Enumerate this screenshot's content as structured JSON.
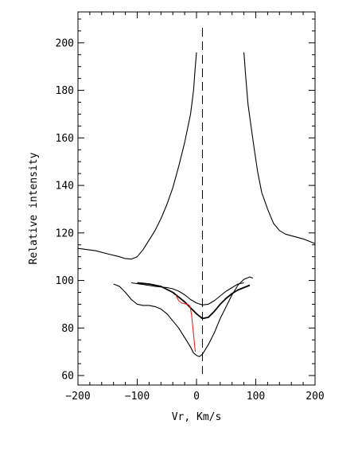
{
  "chart_data": {
    "type": "line",
    "title": "",
    "xlabel": "Vr, Km/s",
    "ylabel": "Relative intensity",
    "xlim": [
      -200,
      200
    ],
    "ylim": [
      56,
      213
    ],
    "xticks": [
      -200,
      -100,
      0,
      100,
      200
    ],
    "yticks": [
      60,
      80,
      100,
      120,
      140,
      160,
      180,
      200
    ],
    "grid": false,
    "legend": "none",
    "reference_line": {
      "x": 10,
      "style": "dashed"
    },
    "series": [
      {
        "color": "#000000",
        "width": 1.1,
        "points": [
          [
            -200,
            113.5
          ],
          [
            -170,
            112.5
          ],
          [
            -150,
            111.2
          ],
          [
            -130,
            110
          ],
          [
            -120,
            109.2
          ],
          [
            -110,
            109
          ],
          [
            -100,
            110
          ],
          [
            -90,
            113
          ],
          [
            -80,
            117
          ],
          [
            -70,
            121
          ],
          [
            -60,
            126
          ],
          [
            -50,
            132
          ],
          [
            -40,
            139
          ],
          [
            -30,
            148
          ],
          [
            -20,
            158
          ],
          [
            -10,
            170
          ],
          [
            -5,
            180
          ],
          [
            -2,
            190
          ],
          [
            0,
            196
          ]
        ]
      },
      {
        "color": "#000000",
        "width": 1.1,
        "points": [
          [
            80,
            196
          ],
          [
            83,
            186
          ],
          [
            87,
            174
          ],
          [
            92,
            165
          ],
          [
            97,
            156
          ],
          [
            103,
            146
          ],
          [
            110,
            137
          ],
          [
            120,
            130
          ],
          [
            130,
            124
          ],
          [
            140,
            121
          ],
          [
            150,
            119.5
          ],
          [
            165,
            118.5
          ],
          [
            180,
            117.5
          ],
          [
            190,
            116.5
          ],
          [
            200,
            115.5
          ]
        ]
      },
      {
        "color": "#000000",
        "width": 1.1,
        "points": [
          [
            -140,
            98.5
          ],
          [
            -130,
            97.5
          ],
          [
            -120,
            95
          ],
          [
            -110,
            92
          ],
          [
            -100,
            90
          ],
          [
            -90,
            89.5
          ],
          [
            -80,
            89.5
          ],
          [
            -70,
            89
          ],
          [
            -60,
            88
          ],
          [
            -50,
            86
          ],
          [
            -40,
            83
          ],
          [
            -30,
            80
          ],
          [
            -20,
            76
          ],
          [
            -10,
            72
          ],
          [
            -5,
            69.5
          ],
          [
            0,
            68.5
          ],
          [
            5,
            68
          ],
          [
            10,
            69
          ],
          [
            20,
            73
          ],
          [
            30,
            78
          ],
          [
            40,
            84
          ],
          [
            50,
            89
          ],
          [
            60,
            94
          ],
          [
            70,
            98
          ],
          [
            80,
            100.5
          ],
          [
            90,
            101.5
          ],
          [
            95,
            101
          ]
        ]
      },
      {
        "color": "#000000",
        "width": 1.1,
        "points": [
          [
            -110,
            99
          ],
          [
            -90,
            98.3
          ],
          [
            -70,
            97.5
          ],
          [
            -50,
            97
          ],
          [
            -40,
            96.5
          ],
          [
            -30,
            95.5
          ],
          [
            -20,
            94
          ],
          [
            -10,
            92
          ],
          [
            0,
            90.5
          ],
          [
            10,
            89.7
          ],
          [
            20,
            90
          ],
          [
            30,
            91.5
          ],
          [
            40,
            93.5
          ],
          [
            50,
            95.5
          ],
          [
            60,
            97
          ],
          [
            70,
            98.5
          ],
          [
            80,
            99
          ]
        ]
      },
      {
        "color": "#000000",
        "width": 1.8,
        "points": [
          [
            -100,
            99
          ],
          [
            -80,
            98.5
          ],
          [
            -60,
            97.5
          ],
          [
            -40,
            95
          ],
          [
            -20,
            91
          ],
          [
            -10,
            88.5
          ],
          [
            0,
            86
          ],
          [
            10,
            84
          ],
          [
            20,
            84.5
          ],
          [
            30,
            87
          ],
          [
            40,
            90
          ],
          [
            50,
            92.5
          ],
          [
            60,
            94.5
          ],
          [
            70,
            96
          ],
          [
            80,
            97
          ],
          [
            90,
            98
          ]
        ]
      },
      {
        "color": "#e8251a",
        "width": 1.1,
        "points": [
          [
            -35,
            94
          ],
          [
            -30,
            91.5
          ],
          [
            -25,
            90.5
          ],
          [
            -20,
            90.2
          ],
          [
            -15,
            90
          ],
          [
            -12,
            89.5
          ],
          [
            -10,
            88
          ],
          [
            -8,
            85
          ],
          [
            -6,
            80
          ],
          [
            -4,
            75
          ],
          [
            -3,
            72
          ],
          [
            -2,
            70
          ]
        ]
      }
    ]
  }
}
